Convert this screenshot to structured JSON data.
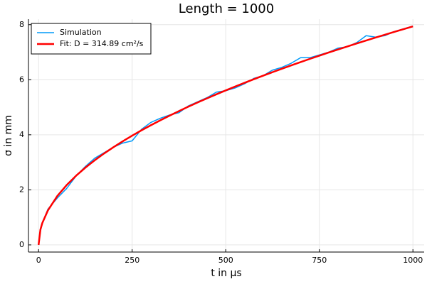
{
  "chart_data": {
    "type": "line",
    "title": "Length = 1000",
    "x_label": "t in µs",
    "y_label": "σ in mm",
    "x": [
      0,
      5,
      10,
      25,
      50,
      75,
      100,
      125,
      150,
      175,
      200,
      225,
      250,
      275,
      300,
      325,
      350,
      375,
      400,
      425,
      450,
      475,
      500,
      525,
      550,
      575,
      600,
      625,
      650,
      675,
      700,
      725,
      750,
      775,
      800,
      825,
      850,
      875,
      900,
      925,
      950,
      975,
      1000
    ],
    "series": [
      {
        "name": "Simulation",
        "color": "#009af9",
        "width": 1.5,
        "values": [
          0,
          0.5,
          0.8,
          1.3,
          1.7,
          2.05,
          2.5,
          2.85,
          3.15,
          3.35,
          3.55,
          3.7,
          3.78,
          4.2,
          4.45,
          4.6,
          4.72,
          4.8,
          5.05,
          5.2,
          5.35,
          5.55,
          5.6,
          5.7,
          5.85,
          6.05,
          6.15,
          6.35,
          6.45,
          6.6,
          6.8,
          6.8,
          6.9,
          7.0,
          7.15,
          7.2,
          7.35,
          7.6,
          7.55,
          7.6,
          7.75,
          7.85,
          7.95
        ]
      },
      {
        "name": "Fit: D = 314.89 cm²/s",
        "color": "#ff0000",
        "width": 2.5,
        "values": [
          0,
          0.561,
          0.794,
          1.255,
          1.775,
          2.174,
          2.51,
          2.806,
          3.074,
          3.321,
          3.55,
          3.765,
          3.969,
          4.163,
          4.348,
          4.525,
          4.696,
          4.861,
          5.02,
          5.175,
          5.325,
          5.471,
          5.613,
          5.751,
          5.887,
          6.019,
          6.148,
          6.275,
          6.4,
          6.522,
          6.641,
          6.759,
          6.874,
          6.988,
          7.1,
          7.21,
          7.318,
          7.425,
          7.53,
          7.634,
          7.737,
          7.838,
          7.938
        ]
      }
    ],
    "xlim": [
      -27,
      1030
    ],
    "ylim": [
      -0.26,
      8.2
    ],
    "xticks": [
      0,
      250,
      500,
      750,
      1000
    ],
    "yticks": [
      0,
      2,
      4,
      6,
      8
    ],
    "grid": true,
    "legend": "top-left"
  }
}
